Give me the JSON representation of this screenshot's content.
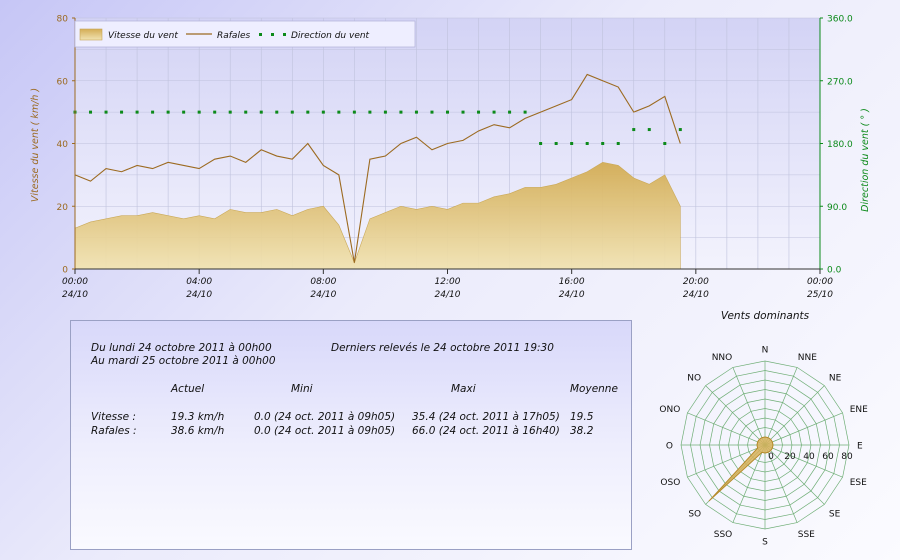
{
  "chart_data": [
    {
      "type": "line",
      "legend": [
        {
          "name": "Vitesse du vent",
          "color": "#dbb968"
        },
        {
          "name": "Rafales",
          "color": "#9c6a20"
        },
        {
          "name": "Direction du vent",
          "color": "#0c8a1a"
        }
      ],
      "legend_placement": "top-left",
      "ylabel_left": "Vitesse du vent ( km/h )",
      "ylabel_right": "Direction du vent ( ° )",
      "ylim_left": [
        0,
        80
      ],
      "ylim_right": [
        0,
        360
      ],
      "y_ticks_left": [
        "0",
        "20",
        "40",
        "60",
        "80"
      ],
      "y_ticks_right": [
        "0.0",
        "90.0",
        "180.0",
        "270.0",
        "360.0"
      ],
      "x_ticks": [
        {
          "time": "00:00",
          "date": "24/10"
        },
        {
          "time": "04:00",
          "date": "24/10"
        },
        {
          "time": "08:00",
          "date": "24/10"
        },
        {
          "time": "12:00",
          "date": "24/10"
        },
        {
          "time": "16:00",
          "date": "24/10"
        },
        {
          "time": "20:00",
          "date": "24/10"
        },
        {
          "time": "00:00",
          "date": "25/10"
        }
      ],
      "xlim_hours": [
        0,
        24
      ],
      "grid": true,
      "series": [
        {
          "name": "Vitesse du vent",
          "kind": "area",
          "x_hours": [
            0,
            0.5,
            1,
            1.5,
            2,
            2.5,
            3,
            3.5,
            4,
            4.5,
            5,
            5.5,
            6,
            6.5,
            7,
            7.5,
            8,
            8.5,
            9,
            9.5,
            10,
            10.5,
            11,
            11.5,
            12,
            12.5,
            13,
            13.5,
            14,
            14.5,
            15,
            15.5,
            16,
            16.5,
            17,
            17.5,
            18,
            18.5,
            19,
            19.5
          ],
          "values": [
            13,
            15,
            16,
            17,
            17,
            18,
            17,
            16,
            17,
            16,
            19,
            18,
            18,
            19,
            17,
            19,
            20,
            14,
            2,
            16,
            18,
            20,
            19,
            20,
            19,
            21,
            21,
            23,
            24,
            26,
            26,
            27,
            29,
            31,
            34,
            33,
            29,
            27,
            30,
            20
          ]
        },
        {
          "name": "Rafales",
          "kind": "line",
          "x_hours": [
            0,
            0.5,
            1,
            1.5,
            2,
            2.5,
            3,
            3.5,
            4,
            4.5,
            5,
            5.5,
            6,
            6.5,
            7,
            7.5,
            8,
            8.5,
            9,
            9.5,
            10,
            10.5,
            11,
            11.5,
            12,
            12.5,
            13,
            13.5,
            14,
            14.5,
            15,
            15.5,
            16,
            16.5,
            17,
            17.5,
            18,
            18.5,
            19,
            19.5
          ],
          "values": [
            30,
            28,
            32,
            31,
            33,
            32,
            34,
            33,
            32,
            35,
            36,
            34,
            38,
            36,
            35,
            40,
            33,
            30,
            2,
            35,
            36,
            40,
            42,
            38,
            40,
            41,
            44,
            46,
            45,
            48,
            50,
            52,
            54,
            62,
            60,
            58,
            50,
            52,
            55,
            40
          ]
        },
        {
          "name": "Direction du vent",
          "kind": "points",
          "x_hours": [
            0,
            0.5,
            1,
            1.5,
            2,
            2.5,
            3,
            3.5,
            4,
            4.5,
            5,
            5.5,
            6,
            6.5,
            7,
            7.5,
            8,
            8.5,
            9,
            9.5,
            10,
            10.5,
            11,
            11.5,
            12,
            12.5,
            13,
            13.5,
            14,
            14.5,
            15,
            15.5,
            16,
            16.5,
            17,
            17.5,
            18,
            18.5,
            19,
            19.5
          ],
          "values": [
            225,
            225,
            225,
            225,
            225,
            225,
            225,
            225,
            225,
            225,
            225,
            225,
            225,
            225,
            225,
            225,
            225,
            225,
            225,
            225,
            225,
            225,
            225,
            225,
            225,
            225,
            225,
            225,
            225,
            225,
            180,
            180,
            180,
            180,
            180,
            180,
            200,
            200,
            180,
            200
          ]
        }
      ]
    },
    {
      "type": "radar",
      "title": "Vents dominants",
      "directions": [
        "N",
        "NNE",
        "NE",
        "ENE",
        "E",
        "ESE",
        "SE",
        "SSE",
        "S",
        "SSO",
        "SO",
        "OSO",
        "O",
        "ONO",
        "NO",
        "NNO"
      ],
      "radial_ticks": [
        "0",
        "20",
        "40",
        "60",
        "80"
      ],
      "rmax": 80,
      "values": [
        0,
        0,
        0,
        0,
        0,
        0,
        0,
        0,
        0,
        0,
        75,
        0,
        0,
        0,
        0,
        0
      ],
      "color": "#d7b25a"
    }
  ],
  "stats": {
    "period_from": "Du lundi 24 octobre 2011 à 00h00",
    "period_to": "Au mardi 25 octobre 2011 à 00h00",
    "last_reading": "Derniers relevés le 24 octobre 2011 19:30",
    "headers": {
      "actuel": "Actuel",
      "mini": "Mini",
      "maxi": "Maxi",
      "moyenne": "Moyenne"
    },
    "rows": [
      {
        "label": "Vitesse :",
        "actuel": "19.3 km/h",
        "mini": "0.0 (24 oct. 2011 à 09h05)",
        "maxi": "35.4 (24 oct. 2011 à 17h05)",
        "moyenne": "19.5"
      },
      {
        "label": "Rafales :",
        "actuel": "38.6 km/h",
        "mini": "0.0 (24 oct. 2011 à 09h05)",
        "maxi": "66.0 (24 oct. 2011 à 16h40)",
        "moyenne": "38.2"
      }
    ]
  }
}
